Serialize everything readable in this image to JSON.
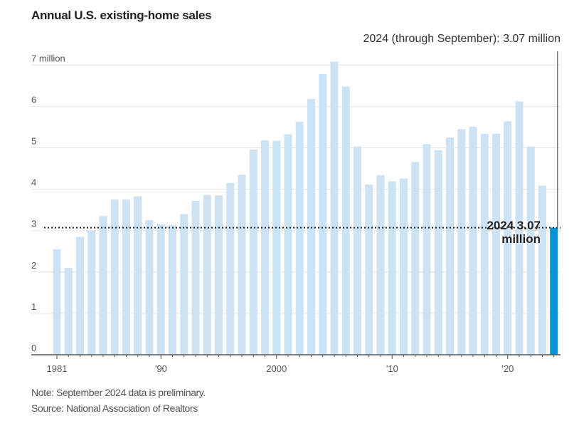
{
  "chart_data": {
    "type": "bar",
    "title": "Annual U.S. existing-home sales",
    "xlabel": "",
    "ylabel": "",
    "ylim": [
      0,
      7
    ],
    "y_ticks": [
      {
        "value": 0,
        "label": "0"
      },
      {
        "value": 1,
        "label": "1"
      },
      {
        "value": 2,
        "label": "2"
      },
      {
        "value": 3,
        "label": "3"
      },
      {
        "value": 4,
        "label": "4"
      },
      {
        "value": 5,
        "label": "5"
      },
      {
        "value": 6,
        "label": "6"
      },
      {
        "value": 7,
        "label": "7 million"
      }
    ],
    "x_ticks": [
      {
        "year": 1981,
        "label": "1981"
      },
      {
        "year": 1990,
        "label": "’90"
      },
      {
        "year": 2000,
        "label": "2000"
      },
      {
        "year": 2010,
        "label": "’10"
      },
      {
        "year": 2020,
        "label": "’20"
      }
    ],
    "grid": true,
    "units": "million",
    "categories": [
      1981,
      1982,
      1983,
      1984,
      1985,
      1986,
      1987,
      1988,
      1989,
      1990,
      1991,
      1992,
      1993,
      1994,
      1995,
      1996,
      1997,
      1998,
      1999,
      2000,
      2001,
      2002,
      2003,
      2004,
      2005,
      2006,
      2007,
      2008,
      2009,
      2010,
      2011,
      2012,
      2013,
      2014,
      2015,
      2016,
      2017,
      2018,
      2019,
      2020,
      2021,
      2022,
      2023,
      2024
    ],
    "values": [
      2.55,
      2.1,
      2.85,
      3.0,
      3.35,
      3.75,
      3.75,
      3.83,
      3.25,
      3.15,
      3.13,
      3.4,
      3.72,
      3.86,
      3.85,
      4.15,
      4.35,
      4.96,
      5.18,
      5.17,
      5.33,
      5.63,
      6.18,
      6.78,
      7.08,
      6.48,
      5.03,
      4.11,
      4.34,
      4.19,
      4.26,
      4.66,
      5.09,
      4.94,
      5.25,
      5.45,
      5.51,
      5.34,
      5.34,
      5.64,
      6.12,
      5.03,
      4.09,
      3.07
    ],
    "highlight": {
      "year": 2024,
      "value": 3.07,
      "color": "#0096d6"
    },
    "bar_color": "#cce3f5",
    "reference_line": {
      "value": 3.07,
      "style": "dotted"
    },
    "annotations": {
      "top_right": "2024 (through September): 3.07 million",
      "bar_label_line1": "2024 3.07",
      "bar_label_line2": "million"
    }
  },
  "footer": {
    "note": "Note: September 2024 data is preliminary.",
    "source": "Source: National Association of Realtors"
  }
}
